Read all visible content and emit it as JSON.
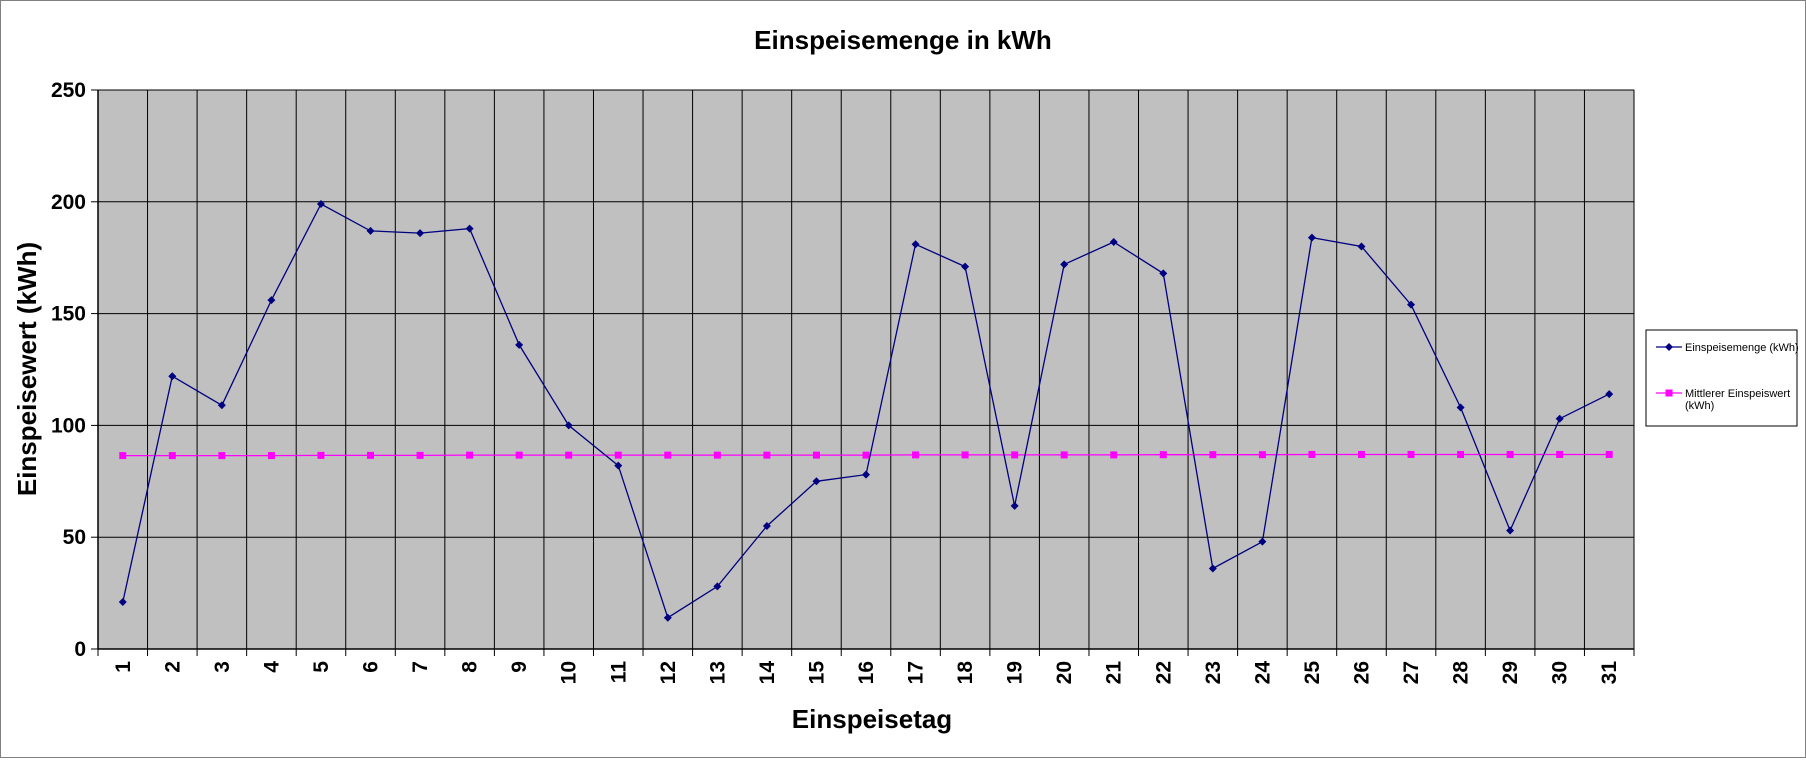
{
  "chart_data": {
    "type": "line",
    "title": "Einspeisemenge in kWh",
    "xlabel": "Einspeisetag",
    "ylabel": "Einspeisewert  (kWh)",
    "categories": [
      "1",
      "2",
      "3",
      "4",
      "5",
      "6",
      "7",
      "8",
      "9",
      "10",
      "11",
      "12",
      "13",
      "14",
      "15",
      "16",
      "17",
      "18",
      "19",
      "20",
      "21",
      "22",
      "23",
      "24",
      "25",
      "26",
      "27",
      "28",
      "29",
      "30",
      "31"
    ],
    "ylim": [
      0,
      250
    ],
    "yticks": [
      0,
      50,
      100,
      150,
      200,
      250
    ],
    "grid": true,
    "legend_position": "right",
    "plot_background": "#c0c0c0",
    "series": [
      {
        "name": "Einspeisemenge (kWh)",
        "color": "#000080",
        "marker": "diamond",
        "values": [
          21,
          122,
          109,
          156,
          199,
          187,
          186,
          188,
          136,
          100,
          82,
          14,
          28,
          55,
          75,
          78,
          181,
          171,
          64,
          172,
          182,
          168,
          36,
          48,
          184,
          180,
          154,
          108,
          53,
          103,
          114
        ]
      },
      {
        "name": "Mittlerer Einspeiswert (kWh)",
        "color": "#ff00ff",
        "marker": "square",
        "values": [
          86.5,
          86.5,
          86.5,
          86.5,
          86.6,
          86.6,
          86.6,
          86.7,
          86.7,
          86.7,
          86.7,
          86.7,
          86.7,
          86.7,
          86.7,
          86.7,
          86.8,
          86.8,
          86.8,
          86.8,
          86.8,
          86.9,
          86.9,
          86.9,
          87,
          87,
          87,
          87,
          87,
          87,
          87
        ]
      }
    ]
  }
}
